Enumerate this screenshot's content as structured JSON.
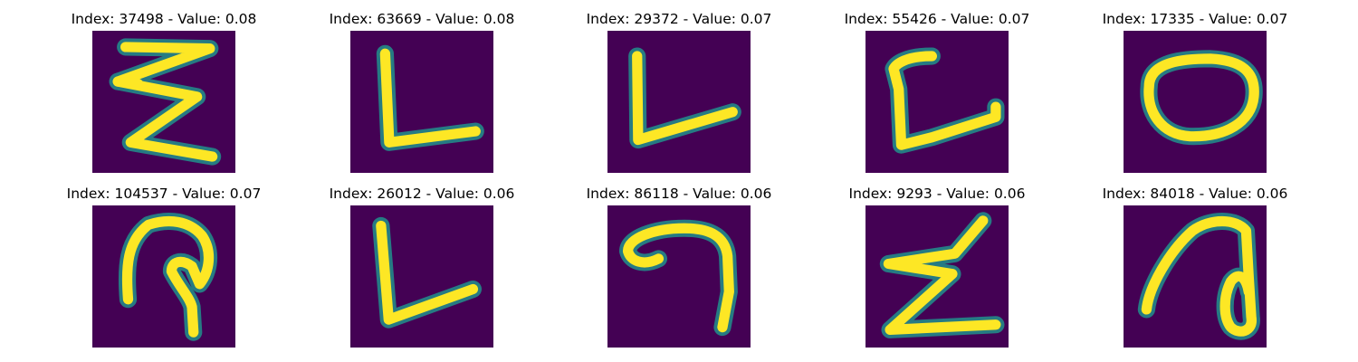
{
  "colors": {
    "background": "#440154",
    "stroke_core": "#fde725",
    "stroke_edge": "#21918c"
  },
  "panels": [
    {
      "title": "Index: 37498 - Value: 0.08",
      "glyph": "zigzag-three"
    },
    {
      "title": "Index: 63669 - Value: 0.08",
      "glyph": "letter-l"
    },
    {
      "title": "Index: 29372 - Value: 0.07",
      "glyph": "letter-v-l"
    },
    {
      "title": "Index: 55426 - Value: 0.07",
      "glyph": "letter-c-l"
    },
    {
      "title": "Index: 17335 - Value: 0.07",
      "glyph": "letter-o"
    },
    {
      "title": "Index: 104537 - Value: 0.07",
      "glyph": "hook-loop"
    },
    {
      "title": "Index: 26012 - Value: 0.06",
      "glyph": "letter-l-tilted"
    },
    {
      "title": "Index: 86118 - Value: 0.06",
      "glyph": "curl-seven"
    },
    {
      "title": "Index: 9293 - Value: 0.06",
      "glyph": "letter-z"
    },
    {
      "title": "Index: 84018 - Value: 0.06",
      "glyph": "arch-loop"
    }
  ]
}
